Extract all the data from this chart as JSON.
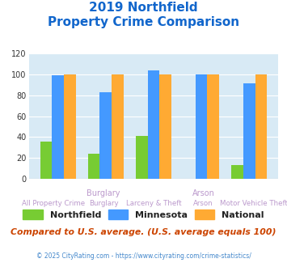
{
  "title_line1": "2019 Northfield",
  "title_line2": "Property Crime Comparison",
  "categories": [
    "All Property Crime",
    "Burglary",
    "Larceny & Theft",
    "Arson",
    "Motor Vehicle Theft"
  ],
  "northfield": [
    36,
    24,
    41,
    0,
    13
  ],
  "minnesota": [
    99,
    83,
    104,
    100,
    91
  ],
  "national": [
    100,
    100,
    100,
    100,
    100
  ],
  "northfield_color": "#77cc33",
  "minnesota_color": "#4499ff",
  "national_color": "#ffaa33",
  "bg_color": "#d8eaf5",
  "ylim": [
    0,
    120
  ],
  "yticks": [
    0,
    20,
    40,
    60,
    80,
    100,
    120
  ],
  "footer_text": "Compared to U.S. average. (U.S. average equals 100)",
  "credit_text": "© 2025 CityRating.com - https://www.cityrating.com/crime-statistics/",
  "title_color": "#1166cc",
  "xlabel_color": "#bb99cc",
  "footer_color": "#cc4400",
  "credit_color": "#4488cc"
}
